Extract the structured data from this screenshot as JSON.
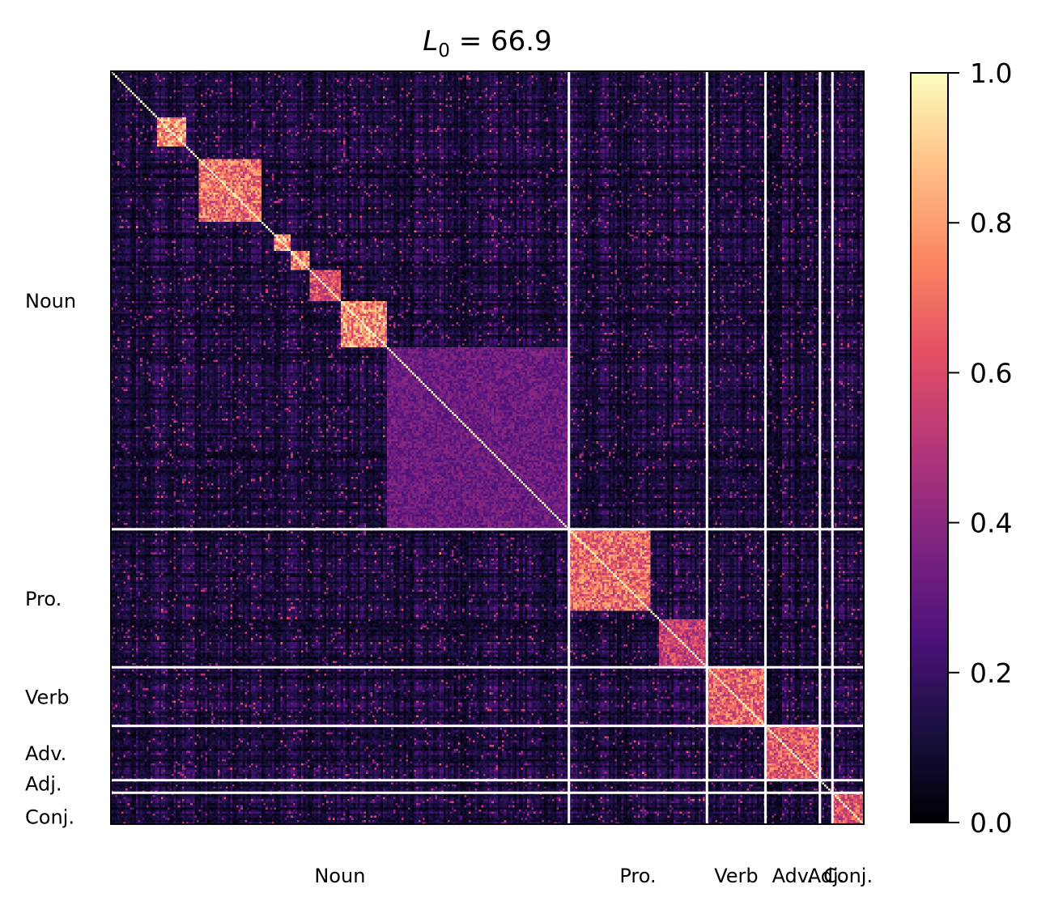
{
  "chart_data": {
    "type": "heatmap",
    "title": {
      "prefix": "L",
      "subscript": "0",
      "rest": " = 66.9"
    },
    "n": 360,
    "colormap": "magma",
    "colorbar": {
      "range": [
        0.0,
        1.0
      ],
      "ticks": [
        "0.0",
        "0.2",
        "0.4",
        "0.6",
        "0.8",
        "1.0"
      ]
    },
    "categories": [
      {
        "label": "Noun",
        "start": 0,
        "end": 219
      },
      {
        "label": "Pro.",
        "start": 219,
        "end": 285
      },
      {
        "label": "Verb",
        "start": 285,
        "end": 313
      },
      {
        "label": "Adv.",
        "start": 313,
        "end": 339
      },
      {
        "label": "Adj.",
        "start": 339,
        "end": 345
      },
      {
        "label": "Conj.",
        "start": 345,
        "end": 360
      }
    ],
    "diagonal_value": 1.0,
    "blocks": [
      {
        "start": 22,
        "end": 36,
        "value": 0.9
      },
      {
        "start": 42,
        "end": 72,
        "value": 0.82
      },
      {
        "start": 78,
        "end": 86,
        "value": 0.9
      },
      {
        "start": 86,
        "end": 95,
        "value": 0.85
      },
      {
        "start": 95,
        "end": 110,
        "value": 0.7
      },
      {
        "start": 110,
        "end": 132,
        "value": 0.88
      },
      {
        "start": 132,
        "end": 219,
        "value": 0.38
      },
      {
        "start": 219,
        "end": 258,
        "value": 0.8
      },
      {
        "start": 262,
        "end": 285,
        "value": 0.65
      },
      {
        "start": 285,
        "end": 313,
        "value": 0.78
      },
      {
        "start": 313,
        "end": 339,
        "value": 0.75
      },
      {
        "start": 345,
        "end": 360,
        "value": 0.72
      }
    ],
    "background_mean": 0.12,
    "grid": false
  }
}
